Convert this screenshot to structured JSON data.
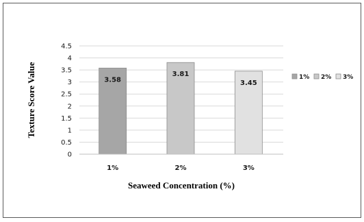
{
  "chart_data": {
    "type": "bar",
    "categories": [
      "1%",
      "2%",
      "3%"
    ],
    "values": [
      3.58,
      3.81,
      3.45
    ],
    "value_labels": [
      "3.58",
      "3.81",
      "3.45"
    ],
    "bar_colors": [
      "#a6a6a6",
      "#c8c8c8",
      "#e1e1e1"
    ],
    "xlabel": "Seaweed Concentration (%)",
    "ylabel": "Texture Score Value",
    "ylim": [
      0,
      4.5
    ],
    "yticks": [
      "0",
      "0.5",
      "1",
      "1.5",
      "2",
      "2.5",
      "3",
      "3.5",
      "4",
      "4.5"
    ],
    "grid": true,
    "legend": {
      "position": "right",
      "entries": [
        "1%",
        "2%",
        "3%"
      ]
    }
  }
}
